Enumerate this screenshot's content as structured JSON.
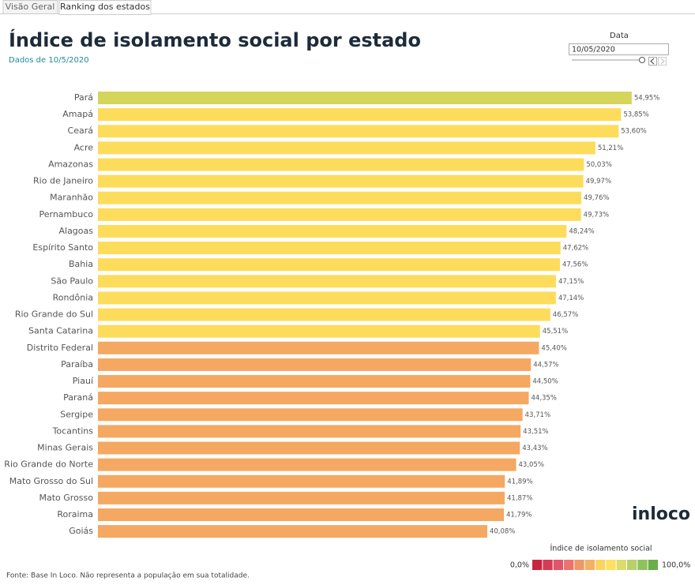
{
  "tabs": [
    "Visão Geral",
    "Ranking dos estados"
  ],
  "filter": {
    "label": "Data",
    "value": "10/05/2020"
  },
  "chart_data": {
    "type": "hbar",
    "title": "Índice de isolamento social por estado",
    "subtitle": "Dados de 10/5/2020",
    "categories": [
      "Pará",
      "Amapá",
      "Ceará",
      "Acre",
      "Amazonas",
      "Rio de Janeiro",
      "Maranhão",
      "Pernambuco",
      "Alagoas",
      "Espírito Santo",
      "Bahia",
      "São Paulo",
      "Rondônia",
      "Rio Grande do Sul",
      "Santa Catarina",
      "Distrito Federal",
      "Paraíba",
      "Piauí",
      "Paraná",
      "Sergipe",
      "Tocantins",
      "Minas Gerais",
      "Rio Grande do Norte",
      "Mato Grosso do Sul",
      "Mato Grosso",
      "Roraima",
      "Goiás"
    ],
    "values": [
      54.95,
      53.85,
      53.6,
      51.21,
      50.03,
      49.97,
      49.76,
      49.73,
      48.24,
      47.62,
      47.56,
      47.15,
      47.14,
      46.57,
      45.51,
      45.4,
      44.57,
      44.5,
      44.35,
      43.71,
      43.51,
      43.43,
      43.05,
      41.89,
      41.87,
      41.79,
      40.08
    ],
    "value_labels": [
      "54,95%",
      "53,85%",
      "53,60%",
      "51,21%",
      "50,03%",
      "49,97%",
      "49,76%",
      "49,73%",
      "48,24%",
      "47,62%",
      "47,56%",
      "47,15%",
      "47,14%",
      "46,57%",
      "45,51%",
      "45,40%",
      "44,57%",
      "44,50%",
      "44,35%",
      "43,71%",
      "43,51%",
      "43,43%",
      "43,05%",
      "41,89%",
      "41,87%",
      "41,79%",
      "40,08%"
    ],
    "colors": [
      "#d5d55c",
      "#fddc5c",
      "#fddc5c",
      "#fddc5c",
      "#fddc5c",
      "#fddc5c",
      "#fddc5c",
      "#fddc5c",
      "#fddc5c",
      "#fddc5c",
      "#fddc5c",
      "#fddc5c",
      "#fddc5c",
      "#fddc5c",
      "#fddc5c",
      "#f4a862",
      "#f4a862",
      "#f4a862",
      "#f4a862",
      "#f4a862",
      "#f4a862",
      "#f4a862",
      "#f4a862",
      "#f4a862",
      "#f4a862",
      "#f4a862",
      "#f4a862"
    ],
    "xlim": [
      0,
      60
    ]
  },
  "legend": {
    "title": "Índice de isolamento social",
    "min_label": "0,0%",
    "max_label": "100,0%",
    "colors": [
      "#c8243f",
      "#d63b55",
      "#e0556a",
      "#ea7370",
      "#f09768",
      "#f4b064",
      "#fad45e",
      "#fde160",
      "#dcdc6a",
      "#b8d06a",
      "#8fc15d",
      "#6aae4a"
    ]
  },
  "logo": "inloco",
  "footer": "Fonte: Base In Loco. Não representa a população em sua totalidade."
}
